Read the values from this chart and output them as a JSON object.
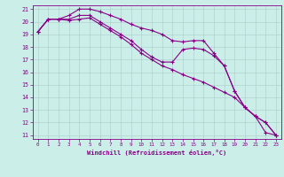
{
  "xlabel": "Windchill (Refroidissement éolien,°C)",
  "bg_color": "#cceee8",
  "grid_color": "#aacccc",
  "line_color": "#880088",
  "xmin": 0,
  "xmax": 23,
  "ymin": 11,
  "ymax": 21,
  "yticks": [
    11,
    12,
    13,
    14,
    15,
    16,
    17,
    18,
    19,
    20,
    21
  ],
  "xticks": [
    0,
    1,
    2,
    3,
    4,
    5,
    6,
    7,
    8,
    9,
    10,
    11,
    12,
    13,
    14,
    15,
    16,
    17,
    18,
    19,
    20,
    21,
    22,
    23
  ],
  "line1_y": [
    19.2,
    20.2,
    20.2,
    20.5,
    21.0,
    21.0,
    20.8,
    20.5,
    20.2,
    19.8,
    19.5,
    19.3,
    19.0,
    18.5,
    18.4,
    18.5,
    18.5,
    17.5,
    16.5,
    14.5,
    13.2,
    12.5,
    11.2,
    11.0
  ],
  "line2_y": [
    19.2,
    20.2,
    20.2,
    20.2,
    20.5,
    20.5,
    20.0,
    19.5,
    19.0,
    18.5,
    17.8,
    17.2,
    16.8,
    16.8,
    17.8,
    17.9,
    17.8,
    17.3,
    16.5,
    14.5,
    13.2,
    12.5,
    12.0,
    11.0
  ],
  "line3_y": [
    19.2,
    20.2,
    20.2,
    20.1,
    20.2,
    20.3,
    19.8,
    19.3,
    18.8,
    18.2,
    17.5,
    17.0,
    16.5,
    16.2,
    15.8,
    15.5,
    15.2,
    14.8,
    14.4,
    14.0,
    13.2,
    12.5,
    12.0,
    11.0
  ]
}
